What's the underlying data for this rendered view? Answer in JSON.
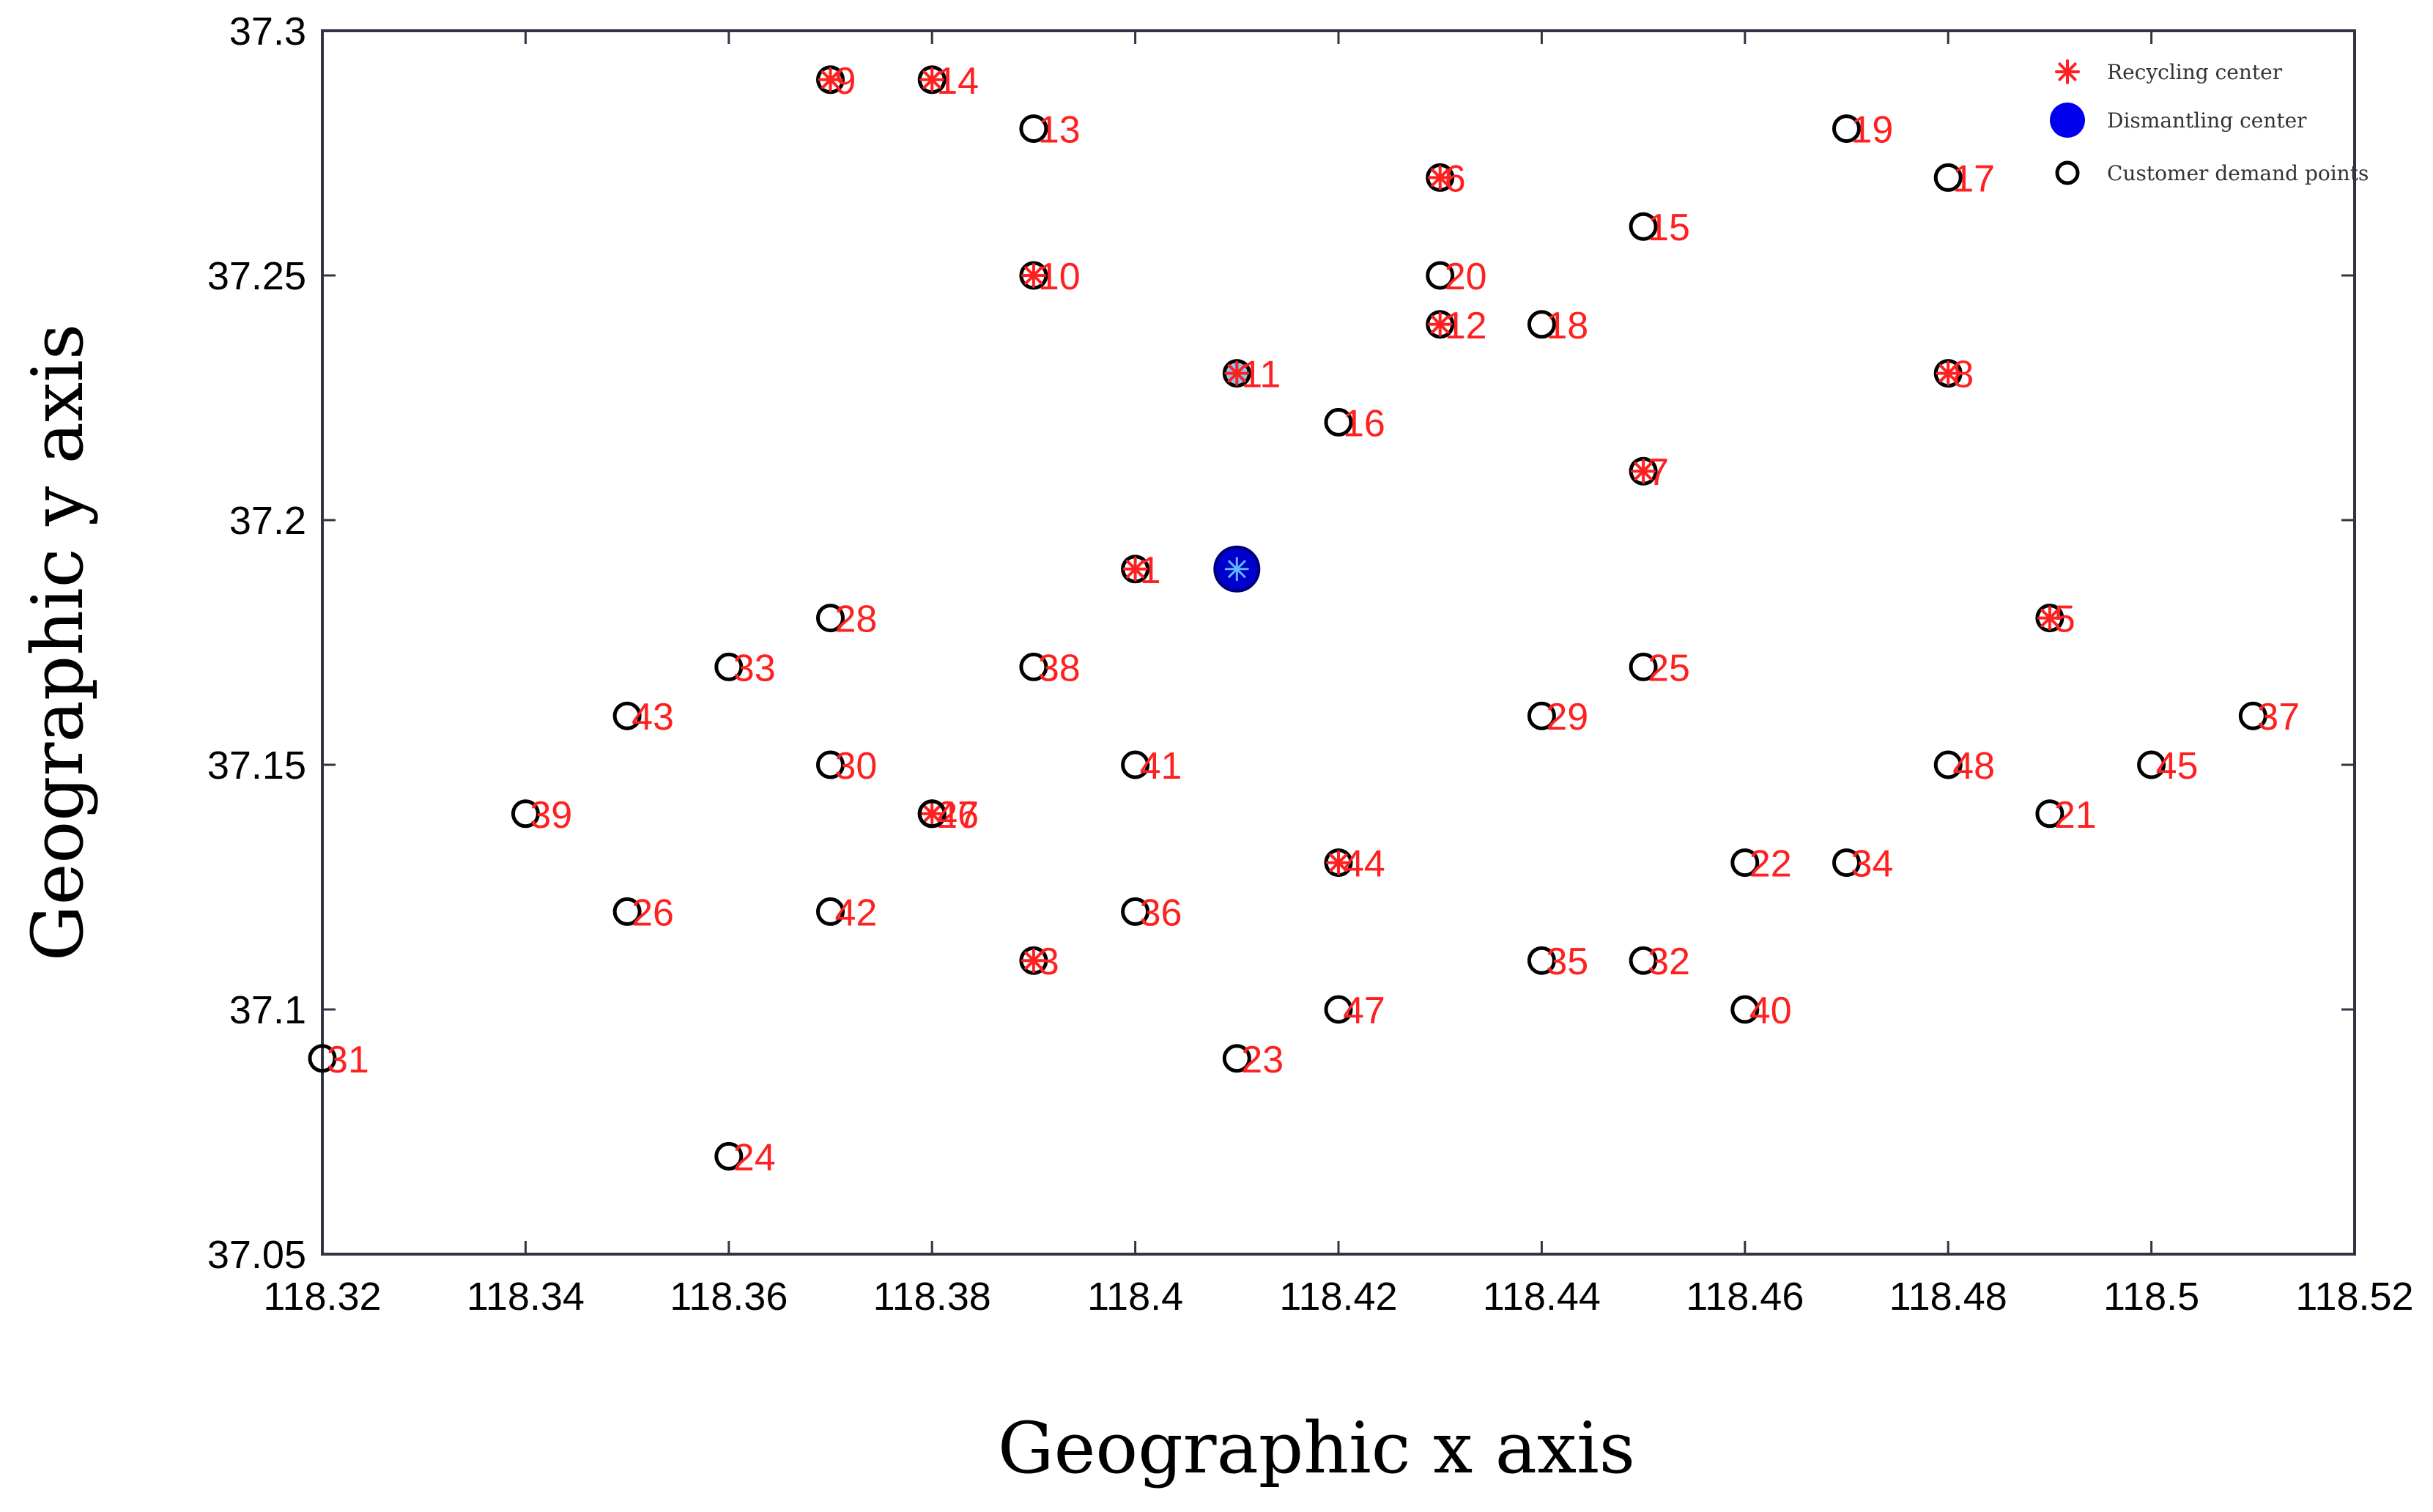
{
  "chart_data": {
    "type": "scatter",
    "xlabel": "Geographic x axis",
    "ylabel": "Geographic y axis",
    "xlim": [
      118.32,
      118.52
    ],
    "ylim": [
      37.05,
      37.3
    ],
    "xticks": [
      118.32,
      118.34,
      118.36,
      118.38,
      118.4,
      118.42,
      118.44,
      118.46,
      118.48,
      118.5,
      118.52
    ],
    "xtick_labels": [
      "118.32",
      "118.34",
      "118.36",
      "118.38",
      "118.4",
      "118.42",
      "118.44",
      "118.46",
      "118.48",
      "118.5",
      "118.52"
    ],
    "yticks": [
      37.05,
      37.1,
      37.15,
      37.2,
      37.25,
      37.3
    ],
    "ytick_labels": [
      "37.05",
      "37.1",
      "37.15",
      "37.2",
      "37.25",
      "37.3"
    ],
    "grid": false,
    "legend": {
      "placement": "top-right",
      "entries": [
        {
          "label": "Recycling center",
          "marker": "asterisk",
          "color": "#ff2020"
        },
        {
          "label": "Dismantling center",
          "marker": "filled-circle",
          "color": "#0000ee"
        },
        {
          "label": "Customer demand points",
          "marker": "open-circle",
          "color": "#000000"
        }
      ]
    },
    "dismantling_center": {
      "x": 118.41,
      "y": 37.19,
      "color": "#0000cc"
    },
    "points": [
      {
        "id": "1",
        "x": 118.4,
        "y": 37.19,
        "recycling": true
      },
      {
        "id": "3",
        "x": 118.39,
        "y": 37.11,
        "recycling": true
      },
      {
        "id": "5",
        "x": 118.49,
        "y": 37.18,
        "recycling": true
      },
      {
        "id": "6",
        "x": 118.43,
        "y": 37.27,
        "recycling": true
      },
      {
        "id": "7",
        "x": 118.45,
        "y": 37.21,
        "recycling": true
      },
      {
        "id": "8",
        "x": 118.48,
        "y": 37.23,
        "recycling": true
      },
      {
        "id": "9",
        "x": 118.37,
        "y": 37.29,
        "recycling": true
      },
      {
        "id": "10",
        "x": 118.39,
        "y": 37.25,
        "recycling": true
      },
      {
        "id": "11",
        "x": 118.41,
        "y": 37.23,
        "recycling": true,
        "fill": "#8ec8f0"
      },
      {
        "id": "12",
        "x": 118.43,
        "y": 37.24,
        "recycling": true
      },
      {
        "id": "13",
        "x": 118.39,
        "y": 37.28,
        "recycling": false
      },
      {
        "id": "14",
        "x": 118.38,
        "y": 37.29,
        "recycling": true
      },
      {
        "id": "15",
        "x": 118.45,
        "y": 37.26,
        "recycling": false
      },
      {
        "id": "16",
        "x": 118.42,
        "y": 37.22,
        "recycling": false
      },
      {
        "id": "17",
        "x": 118.48,
        "y": 37.27,
        "recycling": false
      },
      {
        "id": "18",
        "x": 118.44,
        "y": 37.24,
        "recycling": false
      },
      {
        "id": "19",
        "x": 118.47,
        "y": 37.28,
        "recycling": false
      },
      {
        "id": "20",
        "x": 118.43,
        "y": 37.25,
        "recycling": false
      },
      {
        "id": "21",
        "x": 118.49,
        "y": 37.14,
        "recycling": false
      },
      {
        "id": "22",
        "x": 118.46,
        "y": 37.13,
        "recycling": false
      },
      {
        "id": "23",
        "x": 118.41,
        "y": 37.09,
        "recycling": false
      },
      {
        "id": "24",
        "x": 118.36,
        "y": 37.07,
        "recycling": false
      },
      {
        "id": "25",
        "x": 118.45,
        "y": 37.17,
        "recycling": false
      },
      {
        "id": "26",
        "x": 118.35,
        "y": 37.12,
        "recycling": false
      },
      {
        "id": "27",
        "x": 118.38,
        "y": 37.14,
        "recycling": true
      },
      {
        "id": "46",
        "x": 118.38,
        "y": 37.14,
        "recycling": false
      },
      {
        "id": "28",
        "x": 118.37,
        "y": 37.18,
        "recycling": false
      },
      {
        "id": "29",
        "x": 118.44,
        "y": 37.16,
        "recycling": false
      },
      {
        "id": "30",
        "x": 118.37,
        "y": 37.15,
        "recycling": false
      },
      {
        "id": "31",
        "x": 118.32,
        "y": 37.09,
        "recycling": false
      },
      {
        "id": "32",
        "x": 118.45,
        "y": 37.11,
        "recycling": false
      },
      {
        "id": "33",
        "x": 118.36,
        "y": 37.17,
        "recycling": false
      },
      {
        "id": "34",
        "x": 118.47,
        "y": 37.13,
        "recycling": false
      },
      {
        "id": "35",
        "x": 118.44,
        "y": 37.11,
        "recycling": false
      },
      {
        "id": "36",
        "x": 118.4,
        "y": 37.12,
        "recycling": false
      },
      {
        "id": "37",
        "x": 118.51,
        "y": 37.16,
        "recycling": false
      },
      {
        "id": "38",
        "x": 118.39,
        "y": 37.17,
        "recycling": false
      },
      {
        "id": "39",
        "x": 118.34,
        "y": 37.14,
        "recycling": false
      },
      {
        "id": "40",
        "x": 118.46,
        "y": 37.1,
        "recycling": false
      },
      {
        "id": "41",
        "x": 118.4,
        "y": 37.15,
        "recycling": false
      },
      {
        "id": "42",
        "x": 118.37,
        "y": 37.12,
        "recycling": false
      },
      {
        "id": "43",
        "x": 118.35,
        "y": 37.16,
        "recycling": false
      },
      {
        "id": "44",
        "x": 118.42,
        "y": 37.13,
        "recycling": true
      },
      {
        "id": "45",
        "x": 118.5,
        "y": 37.15,
        "recycling": false
      },
      {
        "id": "47",
        "x": 118.42,
        "y": 37.1,
        "recycling": false
      },
      {
        "id": "48",
        "x": 118.48,
        "y": 37.15,
        "recycling": false
      }
    ]
  }
}
